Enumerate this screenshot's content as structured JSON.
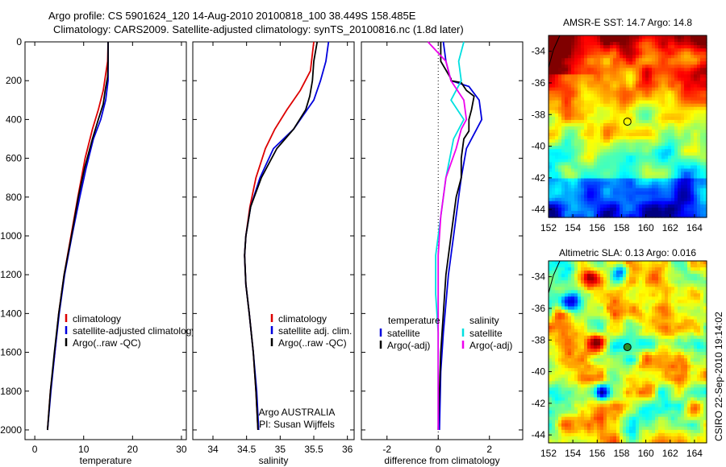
{
  "header": {
    "line1": "Argo profile: CS 5901624_120 14-Aug-2010 20100818_100 38.449S 158.485E",
    "line2": "Climatology: CARS2009. Satellite-adjusted climatology: synTS_20100816.nc (1.8d later)"
  },
  "colors": {
    "clim": "#dd0000",
    "sat": "#0000dd",
    "argo": "#000000",
    "sal_sat": "#00e0e0",
    "sal_argo": "#ee00ee"
  },
  "chart_data": [
    {
      "type": "line",
      "id": "temperature",
      "xlabel": "temperature",
      "ylabel": "",
      "xlim": [
        -2,
        31
      ],
      "ylim": [
        2050,
        0
      ],
      "xticks": [
        0,
        10,
        20,
        30
      ],
      "yticks": [
        0,
        200,
        400,
        600,
        800,
        1000,
        1200,
        1400,
        1600,
        1800,
        2000
      ],
      "legend": [
        "climatology",
        "satellite-adjusted climatology",
        "Argo(..raw -QC)"
      ],
      "series": [
        {
          "name": "climatology",
          "color": "#dd0000",
          "points": [
            [
              15.0,
              0
            ],
            [
              14.9,
              100
            ],
            [
              14.6,
              150
            ],
            [
              14.0,
              250
            ],
            [
              13.0,
              350
            ],
            [
              11.8,
              450
            ],
            [
              10.3,
              600
            ],
            [
              8.8,
              800
            ],
            [
              7.4,
              1000
            ],
            [
              6.0,
              1200
            ],
            [
              4.9,
              1400
            ],
            [
              4.1,
              1600
            ],
            [
              3.2,
              1800
            ],
            [
              2.6,
              2000
            ]
          ]
        },
        {
          "name": "satellite-adjusted climatology",
          "color": "#0000dd",
          "points": [
            [
              15.0,
              0
            ],
            [
              15.0,
              100
            ],
            [
              15.0,
              200
            ],
            [
              14.5,
              300
            ],
            [
              13.5,
              400
            ],
            [
              12.0,
              500
            ],
            [
              10.5,
              650
            ],
            [
              9.2,
              800
            ],
            [
              7.6,
              1000
            ],
            [
              6.1,
              1200
            ],
            [
              5.0,
              1400
            ],
            [
              4.1,
              1600
            ],
            [
              3.3,
              1800
            ],
            [
              2.6,
              2000
            ]
          ]
        },
        {
          "name": "Argo(..raw -QC)",
          "color": "#000000",
          "points": [
            [
              15.0,
              0
            ],
            [
              15.0,
              100
            ],
            [
              14.9,
              180
            ],
            [
              14.4,
              250
            ],
            [
              14.0,
              320
            ],
            [
              13.0,
              400
            ],
            [
              11.8,
              500
            ],
            [
              10.2,
              650
            ],
            [
              8.9,
              800
            ],
            [
              7.5,
              1000
            ],
            [
              6.0,
              1200
            ],
            [
              4.9,
              1400
            ],
            [
              4.0,
              1600
            ],
            [
              3.2,
              1800
            ],
            [
              2.6,
              2000
            ]
          ]
        }
      ]
    },
    {
      "type": "line",
      "id": "salinity",
      "xlabel": "salinity",
      "ylabel": "",
      "xlim": [
        33.7,
        36.1
      ],
      "ylim": [
        2050,
        0
      ],
      "xticks": [
        34,
        34.5,
        35,
        35.5,
        36
      ],
      "legend": [
        "climatology",
        "satellite adj. clim.",
        "Argo(..raw -QC)"
      ],
      "annotation": [
        "Argo AUSTRALIA",
        "PI: Susan Wijffels"
      ],
      "series": [
        {
          "name": "climatology",
          "color": "#dd0000",
          "points": [
            [
              35.5,
              0
            ],
            [
              35.45,
              150
            ],
            [
              35.3,
              250
            ],
            [
              35.1,
              350
            ],
            [
              34.92,
              450
            ],
            [
              34.78,
              550
            ],
            [
              34.64,
              700
            ],
            [
              34.55,
              850
            ],
            [
              34.49,
              1000
            ],
            [
              34.47,
              1100
            ],
            [
              34.49,
              1250
            ],
            [
              34.54,
              1400
            ],
            [
              34.6,
              1600
            ],
            [
              34.64,
              1800
            ],
            [
              34.67,
              2000
            ]
          ]
        },
        {
          "name": "satellite adj. clim.",
          "color": "#0000dd",
          "points": [
            [
              35.72,
              0
            ],
            [
              35.68,
              100
            ],
            [
              35.6,
              200
            ],
            [
              35.5,
              300
            ],
            [
              35.2,
              450
            ],
            [
              34.9,
              550
            ],
            [
              34.7,
              700
            ],
            [
              34.56,
              850
            ],
            [
              34.49,
              1000
            ],
            [
              34.47,
              1100
            ],
            [
              34.49,
              1250
            ],
            [
              34.54,
              1400
            ],
            [
              34.6,
              1600
            ],
            [
              34.65,
              1800
            ],
            [
              34.68,
              2000
            ]
          ]
        },
        {
          "name": "Argo(..raw -QC)",
          "color": "#000000",
          "points": [
            [
              35.55,
              0
            ],
            [
              35.5,
              100
            ],
            [
              35.48,
              200
            ],
            [
              35.44,
              280
            ],
            [
              35.38,
              350
            ],
            [
              35.2,
              450
            ],
            [
              34.95,
              550
            ],
            [
              34.72,
              700
            ],
            [
              34.56,
              850
            ],
            [
              34.49,
              1000
            ],
            [
              34.47,
              1100
            ],
            [
              34.49,
              1250
            ],
            [
              34.54,
              1400
            ],
            [
              34.6,
              1600
            ],
            [
              34.64,
              1800
            ],
            [
              34.67,
              2000
            ]
          ]
        }
      ]
    },
    {
      "type": "line",
      "id": "difference",
      "xlabel": "difference from climatology",
      "ylabel": "",
      "xlim": [
        -3,
        3.3
      ],
      "ylim": [
        2050,
        0
      ],
      "xticks": [
        -2,
        0,
        2
      ],
      "legend_left_title": "temperature",
      "legend_right_title": "salinity",
      "legend": [
        "satellite",
        "Argo(-adj)",
        "satellite",
        "Argo(-adj)"
      ],
      "series": [
        {
          "name": "temperature satellite",
          "color": "#0000dd",
          "points": [
            [
              0.2,
              0
            ],
            [
              0.3,
              100
            ],
            [
              0.5,
              200
            ],
            [
              1.2,
              230
            ],
            [
              1.6,
              300
            ],
            [
              1.7,
              400
            ],
            [
              1.5,
              450
            ],
            [
              1.1,
              550
            ],
            [
              0.9,
              700
            ],
            [
              0.8,
              800
            ],
            [
              0.6,
              1000
            ],
            [
              0.4,
              1200
            ],
            [
              0.2,
              1500
            ],
            [
              0.1,
              1700
            ],
            [
              0.05,
              2000
            ]
          ]
        },
        {
          "name": "temperature Argo(-adj)",
          "color": "#000000",
          "points": [
            [
              0.1,
              0
            ],
            [
              0.1,
              100
            ],
            [
              0.5,
              190
            ],
            [
              0.5,
              200
            ],
            [
              0.9,
              210
            ],
            [
              1.1,
              250
            ],
            [
              1.4,
              280
            ],
            [
              1.3,
              350
            ],
            [
              1.2,
              400
            ],
            [
              1.2,
              460
            ],
            [
              1.0,
              500
            ],
            [
              0.9,
              600
            ],
            [
              0.9,
              700
            ],
            [
              0.7,
              800
            ],
            [
              0.5,
              1000
            ],
            [
              0.3,
              1200
            ],
            [
              0.2,
              1400
            ],
            [
              0.1,
              1600
            ],
            [
              0.05,
              1800
            ],
            [
              0,
              2000
            ]
          ]
        },
        {
          "name": "salinity satellite",
          "color": "#00e0e0",
          "points": [
            [
              1.0,
              0
            ],
            [
              0.8,
              100
            ],
            [
              0.9,
              200
            ],
            [
              0.5,
              300
            ],
            [
              1.0,
              400
            ],
            [
              0.6,
              500
            ],
            [
              0.3,
              700
            ],
            [
              0.1,
              900
            ],
            [
              -0.1,
              1100
            ],
            [
              -0.1,
              1300
            ],
            [
              0,
              1500
            ],
            [
              0,
              1800
            ],
            [
              0,
              2000
            ]
          ]
        },
        {
          "name": "salinity Argo(-adj)",
          "color": "#ee00ee",
          "points": [
            [
              -0.4,
              0
            ],
            [
              0.3,
              100
            ],
            [
              0.5,
              200
            ],
            [
              1.0,
              300
            ],
            [
              1.1,
              400
            ],
            [
              0.9,
              450
            ],
            [
              0.7,
              550
            ],
            [
              0.3,
              700
            ],
            [
              0.1,
              900
            ],
            [
              0,
              1100
            ],
            [
              0,
              1500
            ],
            [
              0,
              2000
            ]
          ]
        }
      ]
    },
    {
      "type": "heatmap",
      "id": "sst_map",
      "title": "AMSR-E SST: 14.7 Argo: 14.8",
      "xlim": [
        152,
        165
      ],
      "ylim": [
        -44.5,
        -33
      ],
      "xticks": [
        152,
        154,
        156,
        158,
        160,
        162,
        164
      ],
      "yticks": [
        -34,
        -36,
        -38,
        -40,
        -42,
        -44
      ],
      "marker": {
        "lon": 158.485,
        "lat": -38.449
      }
    },
    {
      "type": "heatmap",
      "id": "sla_map",
      "title": "Altimetric SLA: 0.13 Argo: 0.016",
      "xlim": [
        152,
        165
      ],
      "ylim": [
        -44.5,
        -33
      ],
      "xticks": [
        152,
        154,
        156,
        158,
        160,
        162,
        164
      ],
      "yticks": [
        -34,
        -36,
        -38,
        -40,
        -42,
        -44
      ],
      "marker": {
        "lon": 158.485,
        "lat": -38.449
      }
    }
  ],
  "side_label": "CSIRO 22-Sep-2010 19:14:02"
}
